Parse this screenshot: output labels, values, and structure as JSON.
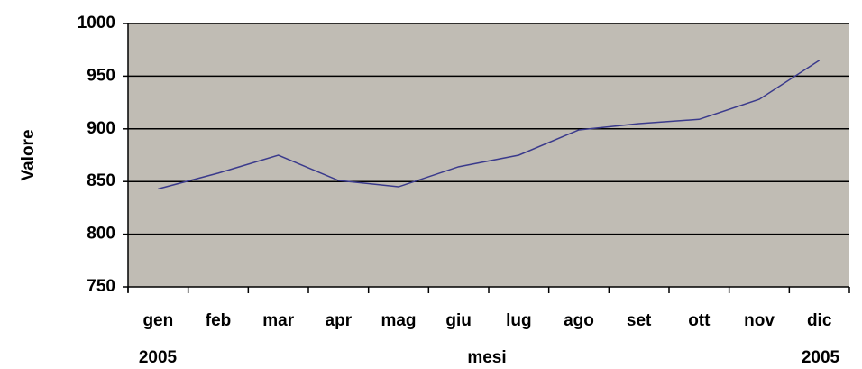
{
  "chart_data": {
    "type": "line",
    "categories": [
      "gen",
      "feb",
      "mar",
      "apr",
      "mag",
      "giu",
      "lug",
      "ago",
      "set",
      "ott",
      "nov",
      "dic"
    ],
    "series": [
      {
        "name": "Valore",
        "color": "#3a3a8c",
        "values": [
          843,
          858,
          875,
          851,
          845,
          864,
          875,
          899,
          905,
          909,
          928,
          965
        ]
      }
    ],
    "ylim": [
      750,
      1000
    ],
    "yticks": [
      750,
      800,
      850,
      900,
      950,
      1000
    ],
    "grid": true,
    "y_label": "Valore",
    "x_label": "mesi",
    "annotations": [
      "2005",
      "2005"
    ],
    "background": "#c0bcb4"
  }
}
